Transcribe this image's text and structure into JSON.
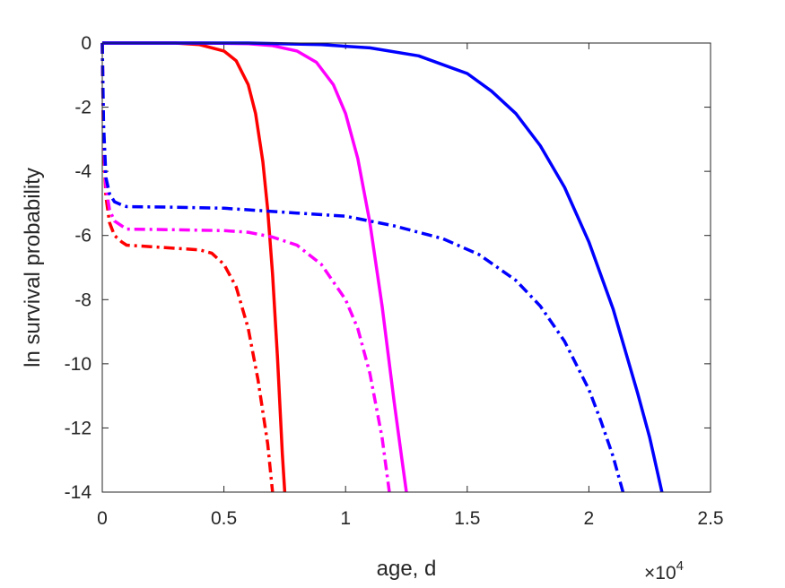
{
  "chart_data": {
    "type": "line",
    "title": "",
    "xlabel": "age, d",
    "ylabel": "ln survival probability",
    "x_exponent_label": "×10",
    "x_exponent_power": "4",
    "xlim": [
      0,
      25000
    ],
    "ylim": [
      -14,
      0
    ],
    "x_ticks": [
      0,
      5000,
      10000,
      15000,
      20000,
      25000
    ],
    "x_tick_labels": [
      "0",
      "0.5",
      "1",
      "1.5",
      "2",
      "2.5"
    ],
    "y_ticks": [
      0,
      -2,
      -4,
      -6,
      -8,
      -10,
      -12,
      -14
    ],
    "y_tick_labels": [
      "0",
      "-2",
      "-4",
      "-6",
      "-8",
      "-10",
      "-12",
      "-14"
    ],
    "grid": false,
    "legend": "none",
    "series": [
      {
        "color": "#ff0000",
        "style": "solid",
        "x": [
          0,
          1000,
          2000,
          3000,
          4000,
          5000,
          5500,
          6000,
          6300,
          6600,
          6800,
          7000,
          7200,
          7400,
          7500
        ],
        "y": [
          0,
          0,
          0,
          0,
          -0.05,
          -0.25,
          -0.55,
          -1.3,
          -2.2,
          -3.7,
          -5.2,
          -7.2,
          -9.8,
          -12.8,
          -14
        ]
      },
      {
        "color": "#ff00ff",
        "style": "solid",
        "x": [
          0,
          2000,
          4000,
          6000,
          7000,
          8000,
          8800,
          9500,
          10000,
          10500,
          11000,
          11500,
          12000,
          12300,
          12500
        ],
        "y": [
          0,
          0,
          0,
          -0.02,
          -0.08,
          -0.25,
          -0.6,
          -1.3,
          -2.2,
          -3.6,
          -5.6,
          -8.2,
          -11.2,
          -12.9,
          -14
        ]
      },
      {
        "color": "#0000ff",
        "style": "solid",
        "x": [
          0,
          3000,
          6000,
          9000,
          11000,
          13000,
          15000,
          16000,
          17000,
          18000,
          19000,
          20000,
          21000,
          22000,
          22500,
          23000
        ],
        "y": [
          0,
          0,
          0,
          -0.05,
          -0.15,
          -0.4,
          -0.95,
          -1.5,
          -2.2,
          -3.2,
          -4.5,
          -6.2,
          -8.3,
          -10.9,
          -12.3,
          -14
        ]
      },
      {
        "color": "#ff0000",
        "style": "dashdot",
        "x": [
          0,
          50,
          150,
          300,
          500,
          800,
          1000,
          2000,
          3000,
          4000,
          4500,
          5000,
          5500,
          6000,
          6400,
          6800,
          7000
        ],
        "y": [
          0,
          -3.2,
          -4.8,
          -5.6,
          -6.0,
          -6.2,
          -6.3,
          -6.35,
          -6.4,
          -6.45,
          -6.55,
          -6.9,
          -7.6,
          -8.9,
          -10.5,
          -12.5,
          -14
        ]
      },
      {
        "color": "#ff00ff",
        "style": "dashdot",
        "x": [
          0,
          50,
          150,
          300,
          500,
          800,
          1000,
          3000,
          5000,
          6000,
          7000,
          8000,
          9000,
          10000,
          10500,
          11000,
          11500,
          11800
        ],
        "y": [
          0,
          -3.0,
          -4.5,
          -5.2,
          -5.55,
          -5.7,
          -5.8,
          -5.82,
          -5.85,
          -5.9,
          -6.05,
          -6.3,
          -6.9,
          -8.0,
          -8.9,
          -10.3,
          -12.3,
          -14
        ]
      },
      {
        "color": "#0000ff",
        "style": "dashdot",
        "x": [
          0,
          50,
          150,
          300,
          500,
          800,
          1000,
          3000,
          5000,
          8000,
          10000,
          12000,
          14000,
          15500,
          17000,
          18000,
          19000,
          20000,
          20500,
          21000,
          21400
        ],
        "y": [
          0,
          -2.5,
          -4.2,
          -4.7,
          -4.95,
          -5.05,
          -5.1,
          -5.12,
          -5.15,
          -5.3,
          -5.4,
          -5.7,
          -6.1,
          -6.6,
          -7.4,
          -8.2,
          -9.3,
          -10.8,
          -11.8,
          -12.9,
          -14
        ]
      }
    ]
  }
}
